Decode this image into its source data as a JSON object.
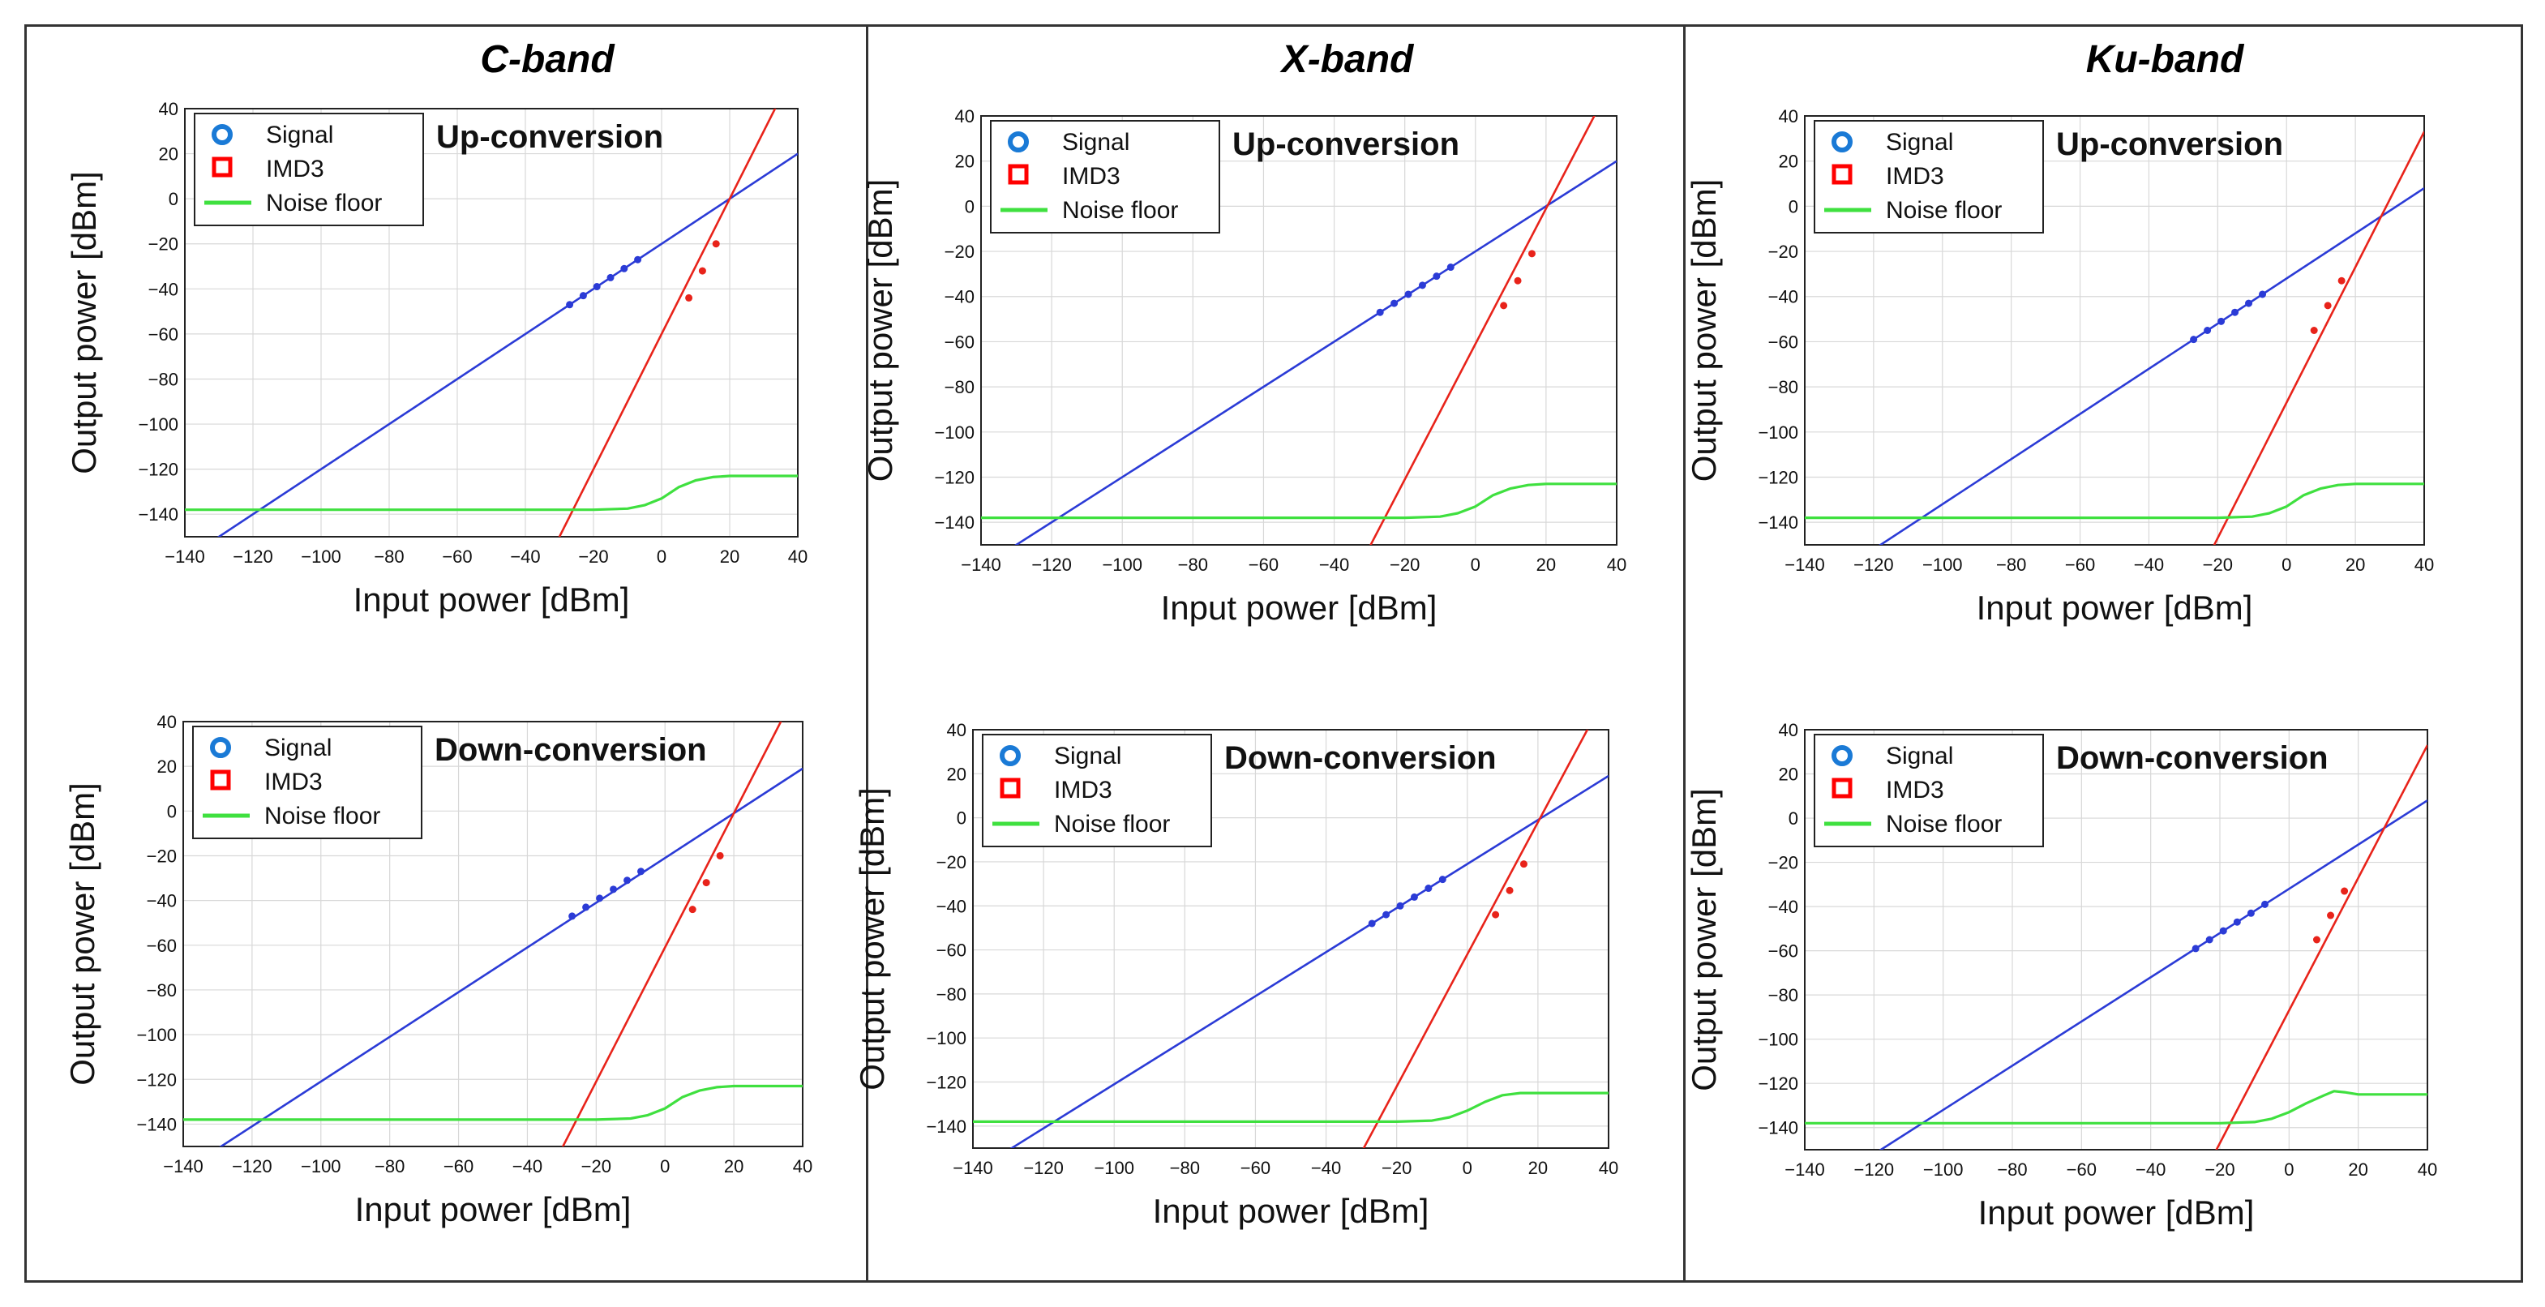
{
  "figure": {
    "columns": [
      {
        "title": "C-band"
      },
      {
        "title": "X-band"
      },
      {
        "title": "Ku-band"
      }
    ]
  },
  "colors": {
    "signal": "#2b3bd6",
    "imd3": "#e8231a",
    "noise_floor": "#3fe03f",
    "marker_signal": "#1a7ad6",
    "marker_imd3": "#ff0000"
  },
  "chart_data": [
    {
      "type": "line",
      "band": "C-band",
      "mode": "Up-conversion",
      "xlabel": "Input power [dBm]",
      "ylabel": "Output power [dBm]",
      "xlim": [
        -140,
        40
      ],
      "ylim": [
        -150,
        40
      ],
      "xticks": [
        -140,
        -120,
        -100,
        -80,
        -60,
        -40,
        -20,
        0,
        20,
        40
      ],
      "yticks": [
        40,
        20,
        0,
        -20,
        -40,
        -60,
        -80,
        -100,
        -120,
        -140
      ],
      "legend": [
        "Signal",
        "IMD3",
        "Noise floor"
      ],
      "legend_position": "top-left",
      "series": [
        {
          "name": "Signal",
          "kind": "line",
          "x": [
            -140,
            40
          ],
          "y": [
            -160,
            20
          ]
        },
        {
          "name": "IMD3",
          "kind": "line",
          "x": [
            -40,
            40
          ],
          "y": [
            -180,
            60
          ]
        },
        {
          "name": "Noise floor",
          "kind": "line",
          "x": [
            -140,
            -20,
            -10,
            -5,
            0,
            5,
            10,
            15,
            20,
            40
          ],
          "y": [
            -138,
            -138,
            -137.5,
            -136,
            -133,
            -128,
            -125,
            -123.5,
            -123,
            -123
          ]
        },
        {
          "name": "Signal",
          "kind": "markers",
          "x": [
            -27,
            -23,
            -19,
            -15,
            -11,
            -7
          ],
          "y": [
            -47,
            -43,
            -39,
            -35,
            -31,
            -27
          ]
        },
        {
          "name": "IMD3",
          "kind": "markers",
          "x": [
            8,
            12,
            16
          ],
          "y": [
            -44,
            -32,
            -20
          ]
        }
      ]
    },
    {
      "type": "line",
      "band": "C-band",
      "mode": "Down-conversion",
      "xlabel": "Input power [dBm]",
      "ylabel": "Output power [dBm]",
      "xlim": [
        -140,
        40
      ],
      "ylim": [
        -150,
        40
      ],
      "xticks": [
        -140,
        -120,
        -100,
        -80,
        -60,
        -40,
        -20,
        0,
        20,
        40
      ],
      "yticks": [
        40,
        20,
        0,
        -20,
        -40,
        -60,
        -80,
        -100,
        -120,
        -140
      ],
      "legend": [
        "Signal",
        "IMD3",
        "Noise floor"
      ],
      "legend_position": "top-left",
      "series": [
        {
          "name": "Signal",
          "kind": "line",
          "x": [
            -140,
            40
          ],
          "y": [
            -161,
            19
          ]
        },
        {
          "name": "IMD3",
          "kind": "line",
          "x": [
            -40,
            40
          ],
          "y": [
            -181,
            59
          ]
        },
        {
          "name": "Noise floor",
          "kind": "line",
          "x": [
            -140,
            -20,
            -10,
            -5,
            0,
            5,
            10,
            15,
            20,
            40
          ],
          "y": [
            -138,
            -138,
            -137.5,
            -136,
            -133,
            -128,
            -125,
            -123.5,
            -123,
            -123
          ]
        },
        {
          "name": "Signal",
          "kind": "markers",
          "x": [
            -27,
            -23,
            -19,
            -15,
            -11,
            -7
          ],
          "y": [
            -47,
            -43,
            -39,
            -35,
            -31,
            -27
          ]
        },
        {
          "name": "IMD3",
          "kind": "markers",
          "x": [
            8,
            12,
            16
          ],
          "y": [
            -44,
            -32,
            -20
          ]
        }
      ]
    },
    {
      "type": "line",
      "band": "X-band",
      "mode": "Up-conversion",
      "xlabel": "Input power [dBm]",
      "ylabel": "Output power [dBm]",
      "xlim": [
        -140,
        40
      ],
      "ylim": [
        -150,
        40
      ],
      "xticks": [
        -140,
        -120,
        -100,
        -80,
        -60,
        -40,
        -20,
        0,
        20,
        40
      ],
      "yticks": [
        40,
        20,
        0,
        -20,
        -40,
        -60,
        -80,
        -100,
        -120,
        -140
      ],
      "legend": [
        "Signal",
        "IMD3",
        "Noise floor"
      ],
      "legend_position": "top-left",
      "series": [
        {
          "name": "Signal",
          "kind": "line",
          "x": [
            -140,
            40
          ],
          "y": [
            -160,
            20
          ]
        },
        {
          "name": "IMD3",
          "kind": "line",
          "x": [
            -40,
            40
          ],
          "y": [
            -181,
            59
          ]
        },
        {
          "name": "Noise floor",
          "kind": "line",
          "x": [
            -140,
            -20,
            -10,
            -5,
            0,
            5,
            10,
            15,
            20,
            40
          ],
          "y": [
            -138,
            -138,
            -137.5,
            -136,
            -133,
            -128,
            -125,
            -123.5,
            -123,
            -123
          ]
        },
        {
          "name": "Signal",
          "kind": "markers",
          "x": [
            -27,
            -23,
            -19,
            -15,
            -11,
            -7
          ],
          "y": [
            -47,
            -43,
            -39,
            -35,
            -31,
            -27
          ]
        },
        {
          "name": "IMD3",
          "kind": "markers",
          "x": [
            8,
            12,
            16
          ],
          "y": [
            -44,
            -33,
            -21
          ]
        }
      ]
    },
    {
      "type": "line",
      "band": "X-band",
      "mode": "Down-conversion",
      "xlabel": "Input power [dBm]",
      "ylabel": "Output power [dBm]",
      "xlim": [
        -140,
        40
      ],
      "ylim": [
        -150,
        40
      ],
      "xticks": [
        -140,
        -120,
        -100,
        -80,
        -60,
        -40,
        -20,
        0,
        20,
        40
      ],
      "yticks": [
        40,
        20,
        0,
        -20,
        -40,
        -60,
        -80,
        -100,
        -120,
        -140
      ],
      "legend": [
        "Signal",
        "IMD3",
        "Noise floor"
      ],
      "legend_position": "top-left",
      "series": [
        {
          "name": "Signal",
          "kind": "line",
          "x": [
            -140,
            40
          ],
          "y": [
            -161,
            19
          ]
        },
        {
          "name": "IMD3",
          "kind": "line",
          "x": [
            -40,
            40
          ],
          "y": [
            -182,
            58
          ]
        },
        {
          "name": "Noise floor",
          "kind": "line",
          "x": [
            -140,
            -20,
            -10,
            -5,
            0,
            5,
            10,
            15,
            20,
            40
          ],
          "y": [
            -138,
            -138,
            -137.5,
            -136,
            -133,
            -129,
            -126,
            -125,
            -125,
            -125
          ]
        },
        {
          "name": "Signal",
          "kind": "markers",
          "x": [
            -27,
            -23,
            -19,
            -15,
            -11,
            -7
          ],
          "y": [
            -48,
            -44,
            -40,
            -36,
            -32,
            -28
          ]
        },
        {
          "name": "IMD3",
          "kind": "markers",
          "x": [
            8,
            12,
            16
          ],
          "y": [
            -44,
            -33,
            -21
          ]
        }
      ]
    },
    {
      "type": "line",
      "band": "Ku-band",
      "mode": "Up-conversion",
      "xlabel": "Input power [dBm]",
      "ylabel": "Output power [dBm]",
      "xlim": [
        -140,
        40
      ],
      "ylim": [
        -150,
        40
      ],
      "xticks": [
        -140,
        -120,
        -100,
        -80,
        -60,
        -40,
        -20,
        0,
        20,
        40
      ],
      "yticks": [
        40,
        20,
        0,
        -20,
        -40,
        -60,
        -80,
        -100,
        -120,
        -140
      ],
      "legend": [
        "Signal",
        "IMD3",
        "Noise floor"
      ],
      "legend_position": "top-left",
      "series": [
        {
          "name": "Signal",
          "kind": "line",
          "x": [
            -140,
            40
          ],
          "y": [
            -172,
            8
          ]
        },
        {
          "name": "IMD3",
          "kind": "line",
          "x": [
            -40,
            40
          ],
          "y": [
            -207,
            33
          ]
        },
        {
          "name": "Noise floor",
          "kind": "line",
          "x": [
            -140,
            -20,
            -10,
            -5,
            0,
            5,
            10,
            15,
            20,
            40
          ],
          "y": [
            -138,
            -138,
            -137.5,
            -136,
            -133,
            -128,
            -125,
            -123.5,
            -123,
            -123
          ]
        },
        {
          "name": "Signal",
          "kind": "markers",
          "x": [
            -27,
            -23,
            -19,
            -15,
            -11,
            -7
          ],
          "y": [
            -59,
            -55,
            -51,
            -47,
            -43,
            -39
          ]
        },
        {
          "name": "IMD3",
          "kind": "markers",
          "x": [
            8,
            12,
            16
          ],
          "y": [
            -55,
            -44,
            -33
          ]
        }
      ]
    },
    {
      "type": "line",
      "band": "Ku-band",
      "mode": "Down-conversion",
      "xlabel": "Input power [dBm]",
      "ylabel": "Output power [dBm]",
      "xlim": [
        -140,
        40
      ],
      "ylim": [
        -150,
        40
      ],
      "xticks": [
        -140,
        -120,
        -100,
        -80,
        -60,
        -40,
        -20,
        0,
        20,
        40
      ],
      "yticks": [
        40,
        20,
        0,
        -20,
        -40,
        -60,
        -80,
        -100,
        -120,
        -140
      ],
      "legend": [
        "Signal",
        "IMD3",
        "Noise floor"
      ],
      "legend_position": "top-left",
      "series": [
        {
          "name": "Signal",
          "kind": "line",
          "x": [
            -140,
            40
          ],
          "y": [
            -172,
            8
          ]
        },
        {
          "name": "IMD3",
          "kind": "line",
          "x": [
            -40,
            40
          ],
          "y": [
            -207,
            33
          ]
        },
        {
          "name": "Noise floor",
          "kind": "line",
          "x": [
            -140,
            -20,
            -10,
            -5,
            0,
            5,
            10,
            13,
            16,
            20,
            40
          ],
          "y": [
            -138,
            -138,
            -137.5,
            -136,
            -133,
            -129,
            -125.5,
            -123.5,
            -124,
            -125,
            -125
          ]
        },
        {
          "name": "Signal",
          "kind": "markers",
          "x": [
            -27,
            -23,
            -19,
            -15,
            -11,
            -7
          ],
          "y": [
            -59,
            -55,
            -51,
            -47,
            -43,
            -39
          ]
        },
        {
          "name": "IMD3",
          "kind": "markers",
          "x": [
            8,
            12,
            16
          ],
          "y": [
            -55,
            -44,
            -33
          ]
        }
      ]
    }
  ]
}
